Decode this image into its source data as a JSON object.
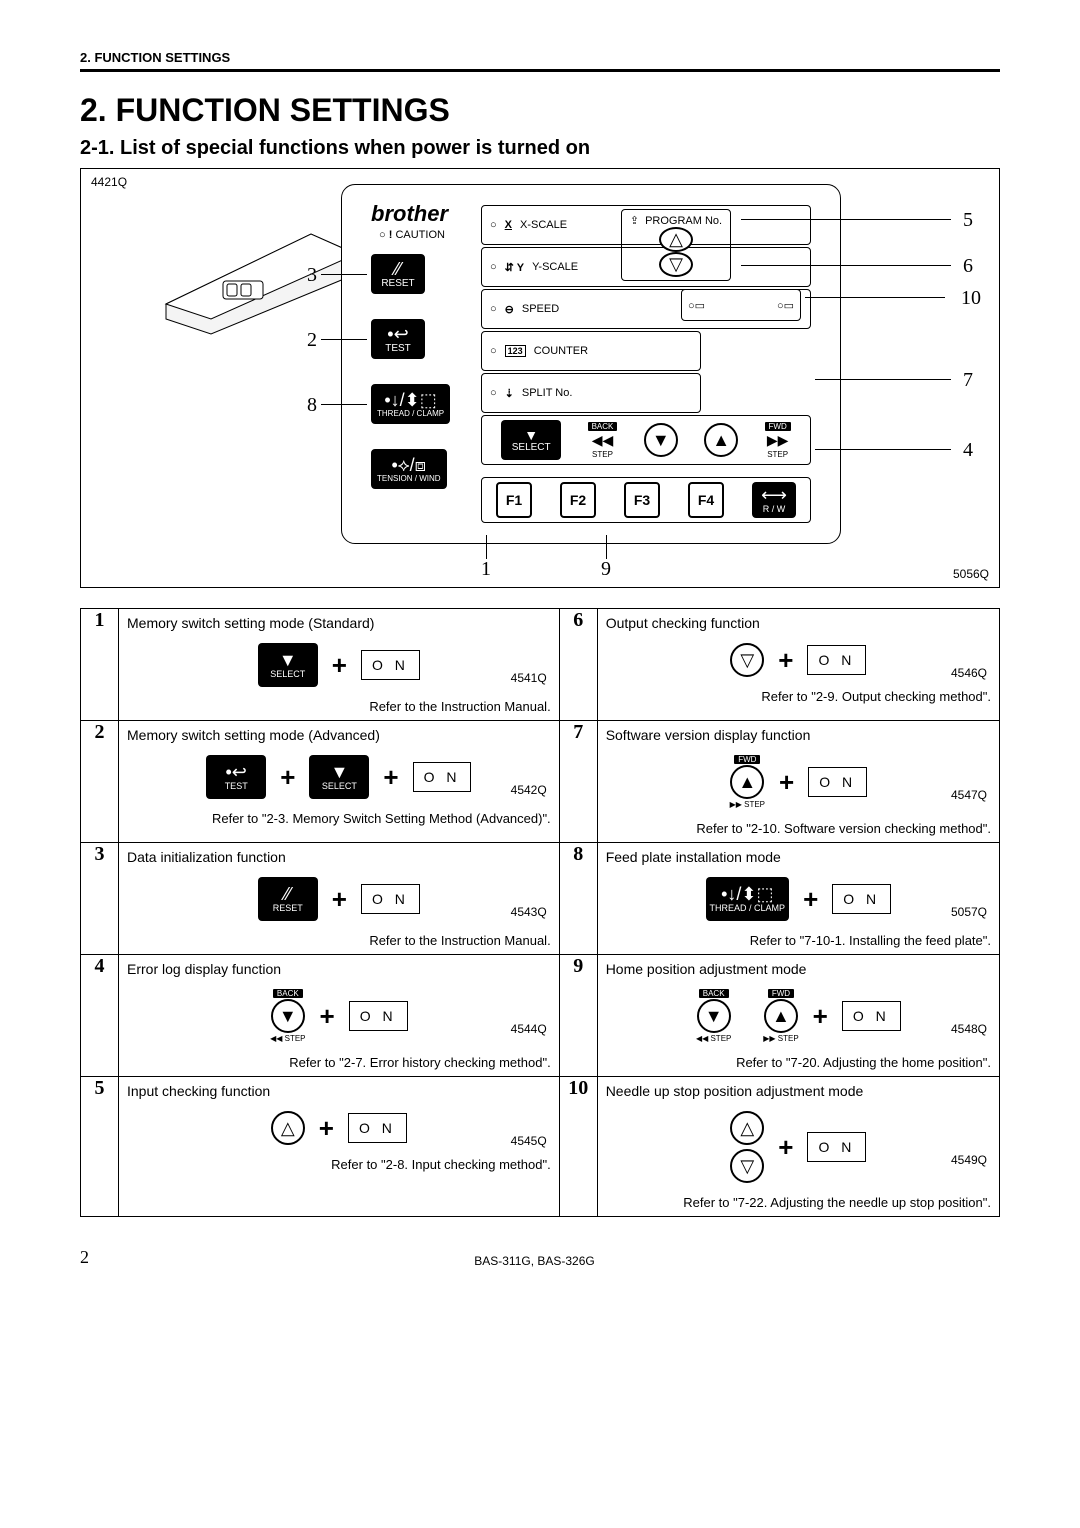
{
  "page_header": "2. FUNCTION SETTINGS",
  "h1": "2. FUNCTION SETTINGS",
  "h2": "2-1. List of special functions when power is turned on",
  "diagram": {
    "code_tl": "4421Q",
    "code_br": "5056Q",
    "brand": "brother",
    "caution": "CAUTION",
    "labels": {
      "xscale": "X-SCALE",
      "yscale": "Y-SCALE",
      "speed": "SPEED",
      "counter": "COUNTER",
      "split": "SPLIT No.",
      "program": "PROGRAM No."
    },
    "buttons": {
      "reset": "RESET",
      "test": "TEST",
      "thread_clamp": "THREAD / CLAMP",
      "tension_wind": "TENSION / WIND",
      "select": "SELECT",
      "back": "BACK",
      "fwd": "FWD",
      "step": "STEP",
      "f1": "F1",
      "f2": "F2",
      "f3": "F3",
      "f4": "F4",
      "rw": "R / W"
    },
    "callouts": {
      "1": "1",
      "2": "2",
      "3": "3",
      "4": "4",
      "5": "5",
      "6": "6",
      "7": "7",
      "8": "8",
      "9": "9",
      "10": "10"
    }
  },
  "on_label": "O N",
  "rows": [
    {
      "n": "1",
      "title": "Memory switch setting mode (Standard)",
      "foot": "Refer to the Instruction Manual.",
      "code": "4541Q",
      "combo": "select"
    },
    {
      "n": "2",
      "title": "Memory switch setting mode (Advanced)",
      "foot": "Refer to \"2-3. Memory Switch Setting Method (Advanced)\".",
      "code": "4542Q",
      "combo": "test_select"
    },
    {
      "n": "3",
      "title": "Data initialization function",
      "foot": "Refer to the Instruction Manual.",
      "code": "4543Q",
      "combo": "reset"
    },
    {
      "n": "4",
      "title": "Error log display function",
      "foot": "Refer to \"2-7. Error history checking method\".",
      "code": "4544Q",
      "combo": "back_step"
    },
    {
      "n": "5",
      "title": "Input checking function",
      "foot": "Refer to \"2-8. Input checking method\".",
      "code": "4545Q",
      "combo": "up"
    },
    {
      "n": "6",
      "title": "Output checking function",
      "foot": "Refer to \"2-9. Output checking method\".",
      "code": "4546Q",
      "combo": "down"
    },
    {
      "n": "7",
      "title": "Software version display function",
      "foot": "Refer to \"2-10. Software version checking method\".",
      "code": "4547Q",
      "combo": "fwd_step"
    },
    {
      "n": "8",
      "title": "Feed plate installation mode",
      "foot": "Refer to \"7-10-1. Installing the feed plate\".",
      "code": "5057Q",
      "combo": "thread_clamp"
    },
    {
      "n": "9",
      "title": "Home position adjustment mode",
      "foot": "Refer to \"7-20. Adjusting the home position\".",
      "code": "4548Q",
      "combo": "back_fwd"
    },
    {
      "n": "10",
      "title": "Needle up stop position adjustment mode",
      "foot": "Refer to \"7-22. Adjusting the needle up stop position\".",
      "code": "4549Q",
      "combo": "up_down"
    }
  ],
  "footer": {
    "page": "2",
    "model": "BAS-311G, BAS-326G"
  }
}
